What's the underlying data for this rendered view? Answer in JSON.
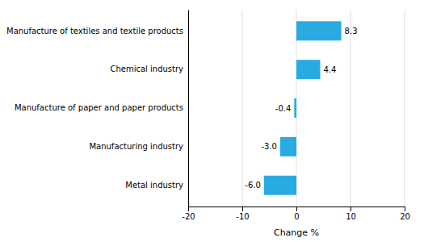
{
  "chart_data": {
    "type": "bar",
    "orientation": "horizontal",
    "categories": [
      "Metal industry",
      "Manufacturing industry",
      "Manufacture of paper and paper products",
      "Chemical industry",
      "Manufacture of textiles and textile products"
    ],
    "values": [
      -6.0,
      -3.0,
      -0.4,
      4.4,
      8.3
    ],
    "value_labels": [
      "-6.0",
      "-3.0",
      "-0.4",
      "4.4",
      "8.3"
    ],
    "color": "#29abe2",
    "xlabel": "Change %",
    "xlim": [
      -20,
      20
    ],
    "xticks": [
      -20,
      -10,
      0,
      10,
      20
    ],
    "grid": true,
    "data_labels": true
  }
}
